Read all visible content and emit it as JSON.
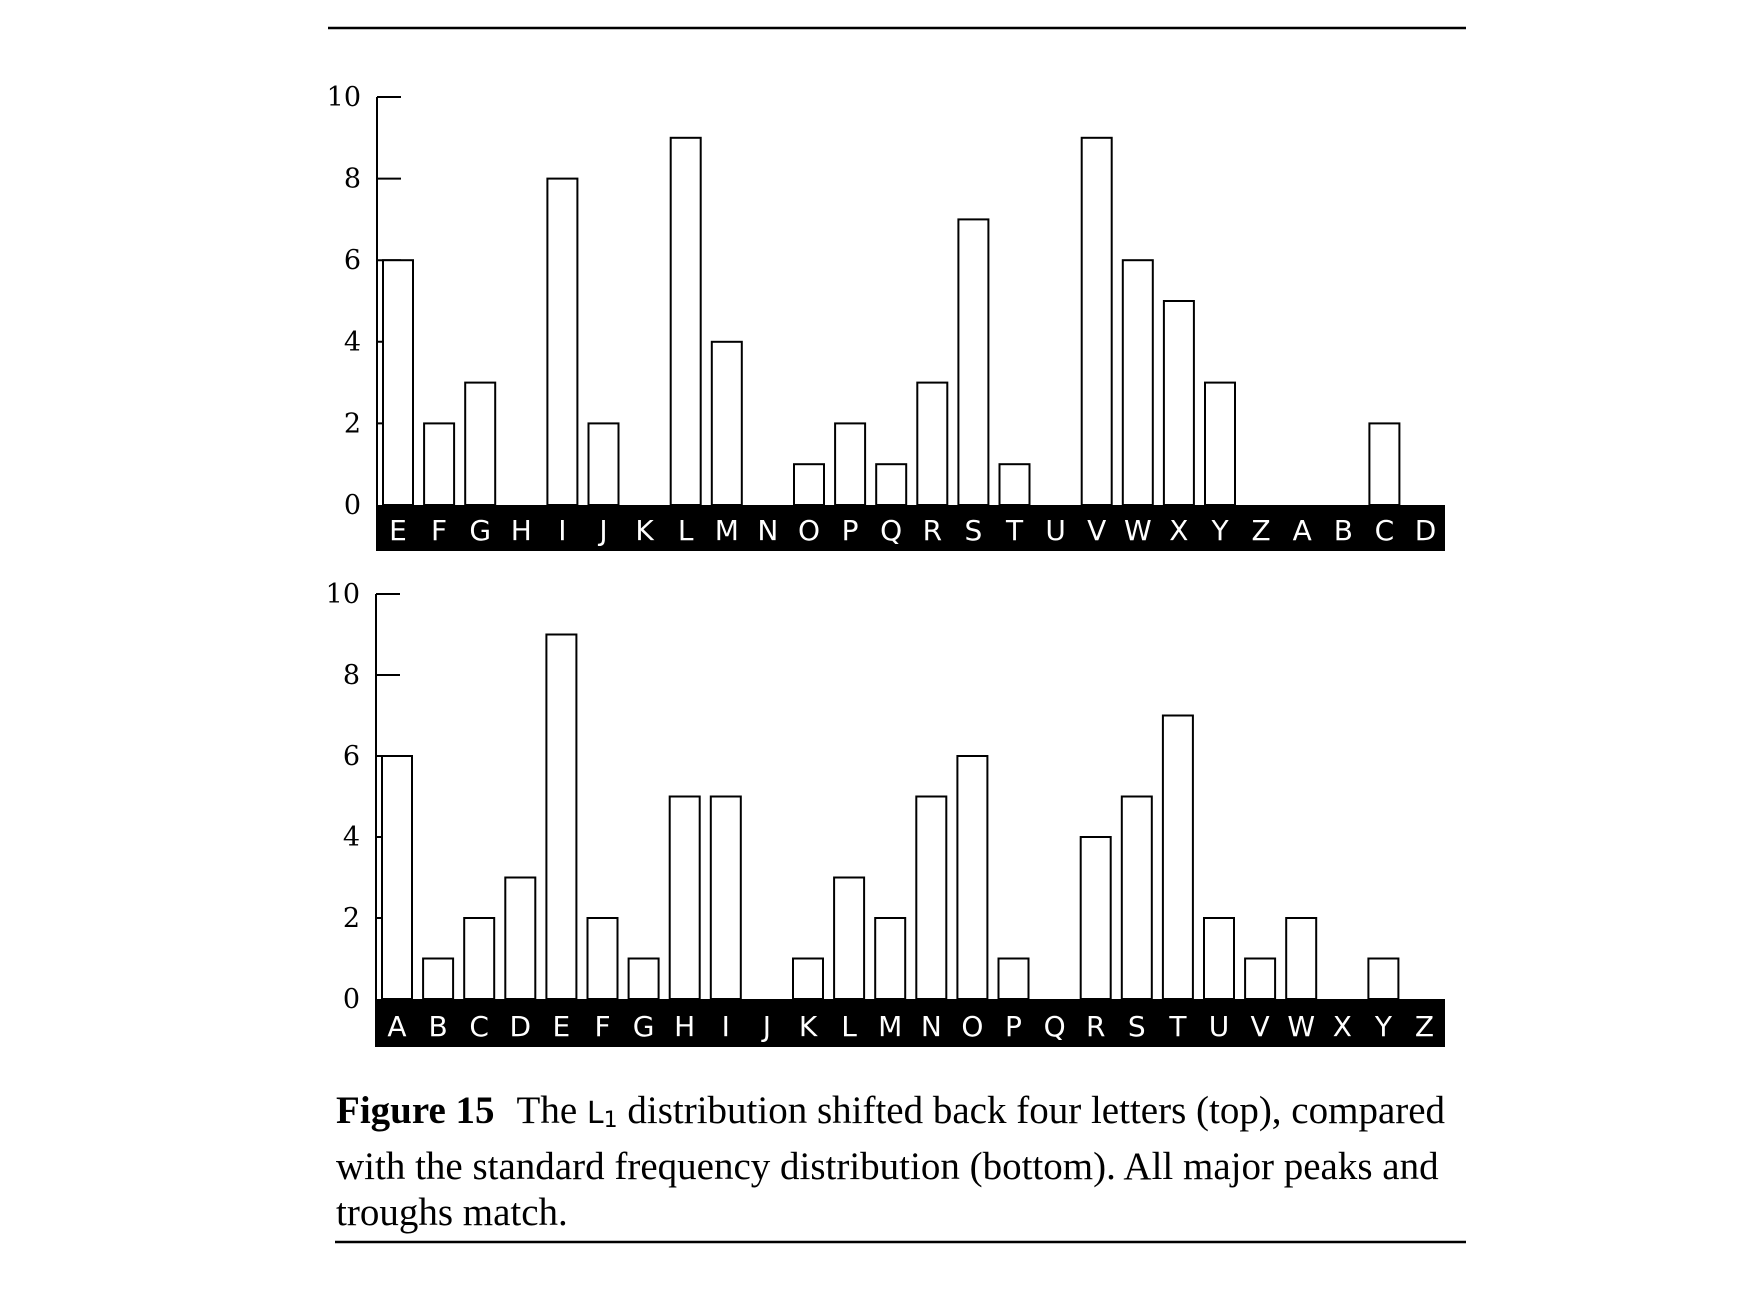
{
  "chart_data": [
    {
      "type": "bar",
      "categories": [
        "E",
        "F",
        "G",
        "H",
        "I",
        "J",
        "K",
        "L",
        "M",
        "N",
        "O",
        "P",
        "Q",
        "R",
        "S",
        "T",
        "U",
        "V",
        "W",
        "X",
        "Y",
        "Z",
        "A",
        "B",
        "C",
        "D"
      ],
      "values": [
        6,
        2,
        3,
        0,
        8,
        2,
        0,
        9,
        4,
        0,
        1,
        2,
        1,
        3,
        7,
        1,
        0,
        9,
        6,
        5,
        3,
        0,
        0,
        0,
        2,
        0
      ],
      "ylim": [
        0,
        10
      ],
      "yticks": [
        0,
        2,
        4,
        6,
        8,
        10
      ],
      "grid": false
    },
    {
      "type": "bar",
      "categories": [
        "A",
        "B",
        "C",
        "D",
        "E",
        "F",
        "G",
        "H",
        "I",
        "J",
        "K",
        "L",
        "M",
        "N",
        "O",
        "P",
        "Q",
        "R",
        "S",
        "T",
        "U",
        "V",
        "W",
        "X",
        "Y",
        "Z"
      ],
      "values": [
        6,
        1,
        2,
        3,
        9,
        2,
        1,
        5,
        5,
        0,
        1,
        3,
        2,
        5,
        6,
        1,
        0,
        4,
        5,
        7,
        2,
        1,
        2,
        0,
        1,
        0
      ],
      "ylim": [
        0,
        10
      ],
      "yticks": [
        0,
        2,
        4,
        6,
        8,
        10
      ],
      "grid": false
    }
  ],
  "caption": {
    "figure_label": "Figure 15",
    "text_before": "The ",
    "code": "L",
    "code_sub": "1",
    "text_after": " distribution shifted back four letters (top), compared with the standard frequency distribution (bottom). All major peaks and troughs match."
  }
}
